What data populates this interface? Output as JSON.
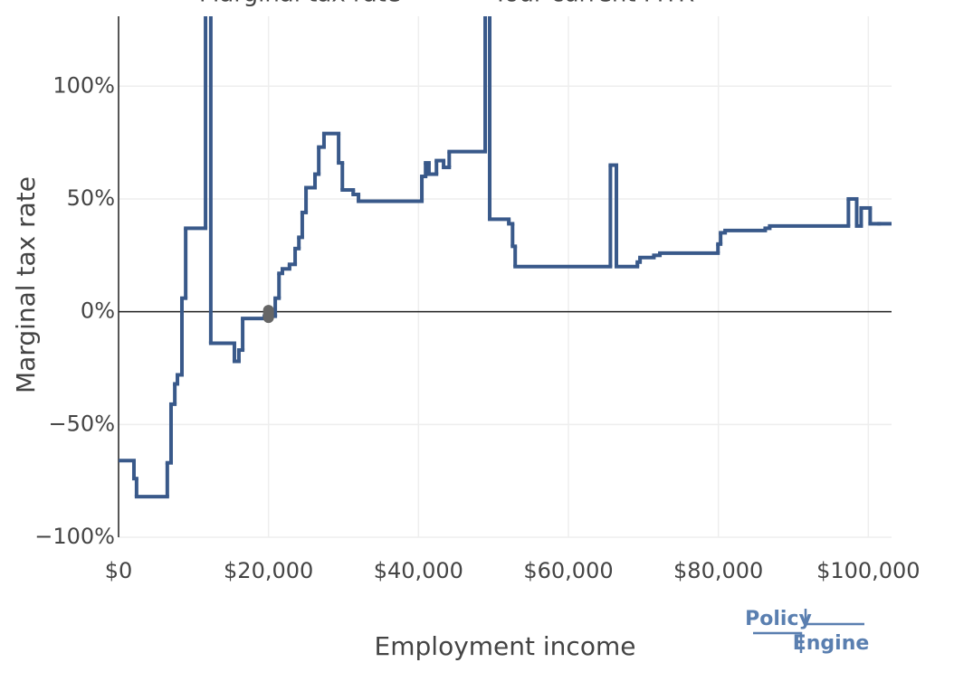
{
  "chart_data": {
    "type": "step",
    "x_label": "Employment income",
    "y_label": "Marginal tax rate",
    "xlim": [
      0,
      103100
    ],
    "ylim": [
      -100,
      131
    ],
    "xticks": [
      {
        "value": 0,
        "label": "$0"
      },
      {
        "value": 20000,
        "label": "$20,000"
      },
      {
        "value": 40000,
        "label": "$40,000"
      },
      {
        "value": 60000,
        "label": "$60,000"
      },
      {
        "value": 80000,
        "label": "$80,000"
      },
      {
        "value": 100000,
        "label": "$100,000"
      }
    ],
    "yticks": [
      {
        "value": -100,
        "label": "−100%"
      },
      {
        "value": -50,
        "label": "−50%"
      },
      {
        "value": 0,
        "label": "0%"
      },
      {
        "value": 50,
        "label": "50%"
      },
      {
        "value": 100,
        "label": "100%"
      }
    ],
    "grid": true,
    "series": [
      {
        "name": "Marginal tax rate",
        "color": "#39598a",
        "x": [
          0,
          2050,
          2400,
          6500,
          7000,
          7500,
          7850,
          8450,
          8950,
          11600,
          12300,
          15450,
          16050,
          16550,
          19450,
          20900,
          21400,
          21850,
          22800,
          23550,
          24050,
          24500,
          25000,
          26200,
          26700,
          27400,
          29350,
          29850,
          31300,
          32000,
          40450,
          40950,
          41400,
          42400,
          43350,
          44100,
          48900,
          49500,
          52050,
          52550,
          52900,
          65600,
          66400,
          69200,
          69550,
          71400,
          72200,
          79950,
          80300,
          80900,
          86250,
          86850,
          97350,
          98450,
          99050,
          100250,
          101450
        ],
        "values": [
          -66,
          -74,
          -82,
          -67,
          -41,
          -32,
          -28,
          6,
          37,
          200,
          -14,
          -22,
          -17,
          -3,
          -2,
          6,
          17,
          19,
          21,
          28,
          33,
          44,
          55,
          61,
          73,
          79,
          66,
          54,
          52,
          49,
          60,
          66,
          61,
          67,
          64,
          71,
          200,
          41,
          39,
          29,
          20,
          65,
          20,
          22,
          24,
          25,
          26,
          30,
          35,
          36,
          37,
          38,
          50,
          38,
          46,
          39,
          39
        ]
      },
      {
        "name": "Your current MTR",
        "color": "#666666",
        "x": [
          20000
        ],
        "values": [
          -1
        ]
      }
    ]
  },
  "logo": {
    "line1": "Policy",
    "line2": "Engine"
  }
}
